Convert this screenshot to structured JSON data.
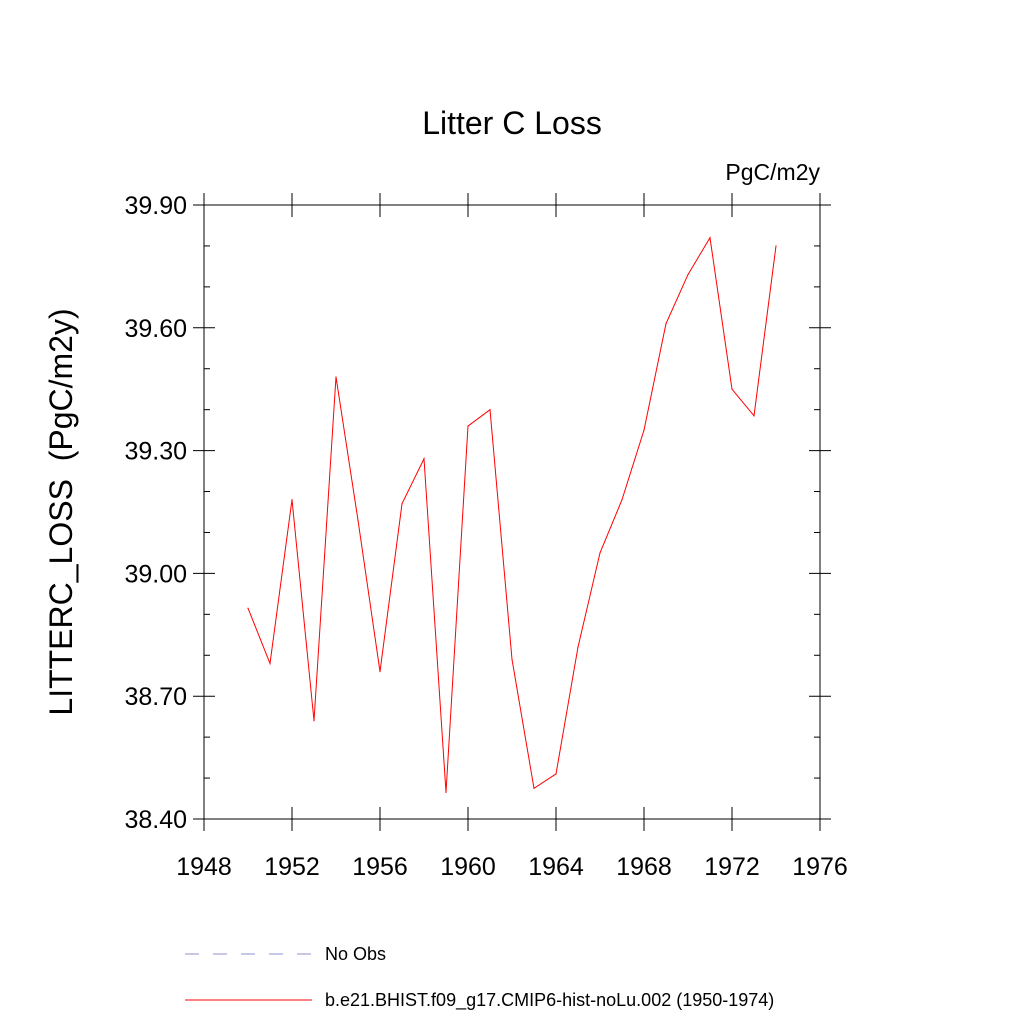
{
  "chart_data": {
    "type": "line",
    "title": "Litter C Loss",
    "units": "PgC/m2y",
    "xlabel": "",
    "ylabel": "LITTERC_LOSS  (PgC/m2y)",
    "xlim": [
      1948,
      1976
    ],
    "ylim": [
      38.4,
      39.9
    ],
    "x_ticks": [
      "1948",
      "1952",
      "1956",
      "1960",
      "1964",
      "1968",
      "1972",
      "1976"
    ],
    "y_ticks": [
      "38.40",
      "38.70",
      "39.00",
      "39.30",
      "39.60",
      "39.90"
    ],
    "grid": false,
    "legend_position": "bottom",
    "x": [
      1950,
      1951,
      1952,
      1953,
      1954,
      1955,
      1956,
      1957,
      1958,
      1959,
      1960,
      1961,
      1962,
      1963,
      1964,
      1965,
      1966,
      1967,
      1968,
      1969,
      1970,
      1971,
      1972,
      1973,
      1974
    ],
    "series": [
      {
        "name": "b.e21.BHIST.f09_g17.CMIP6-hist-noLu.002 (1950-1974)",
        "color": "#ff0000",
        "values": [
          38.915,
          38.78,
          39.18,
          38.64,
          39.48,
          39.13,
          38.76,
          39.17,
          39.28,
          38.465,
          39.36,
          39.4,
          38.79,
          38.475,
          38.51,
          38.82,
          39.05,
          39.18,
          39.35,
          39.61,
          39.73,
          39.82,
          39.45,
          39.385,
          39.8
        ]
      }
    ],
    "legend": [
      {
        "label": "No Obs",
        "color": "#8f8fd0",
        "style": "dashed"
      },
      {
        "label": "b.e21.BHIST.f09_g17.CMIP6-hist-noLu.002 (1950-1974)",
        "color": "#ff0000",
        "style": "solid"
      }
    ]
  }
}
